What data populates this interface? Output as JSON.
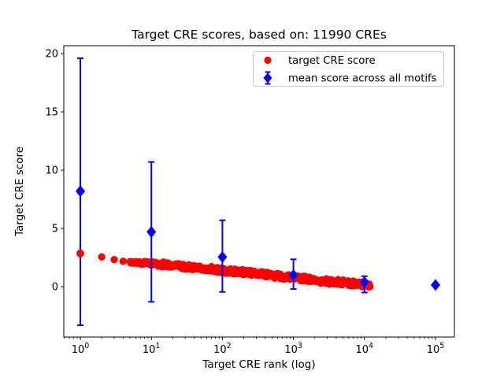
{
  "figure": {
    "background": "#ffffff",
    "plot_bg": "#ffffff",
    "spine_color": "#000000"
  },
  "chart_data": {
    "type": "scatter",
    "title": "Target CRE scores, based on: 11990 CREs",
    "xlabel": "Target CRE rank (log)",
    "ylabel": "Target CRE score",
    "x_scale": "log",
    "x_tick_base": "10",
    "x_tick_exponents": [
      0,
      1,
      2,
      3,
      4,
      5
    ],
    "y_ticks": [
      0,
      5,
      10,
      15,
      20
    ],
    "xlim_log10": [
      -0.233,
      5.266
    ],
    "ylim": [
      -4.32,
      20.68
    ],
    "grid": false,
    "legend_position": "upper center-right",
    "legend_frame_color": "#c8c8c8",
    "n_cres": 11990,
    "series": [
      {
        "name": "target CRE score",
        "color": "#ff0000",
        "marker": "circle",
        "rank_range": [
          1,
          11990
        ],
        "curve_log10x_y": [
          [
            0.0,
            2.85
          ],
          [
            0.301,
            2.55
          ],
          [
            0.477,
            2.32
          ],
          [
            0.602,
            2.18
          ],
          [
            0.699,
            2.1
          ],
          [
            1.0,
            2.0
          ],
          [
            1.5,
            1.7
          ],
          [
            2.0,
            1.4
          ],
          [
            2.5,
            1.1
          ],
          [
            3.0,
            0.75
          ],
          [
            3.5,
            0.45
          ],
          [
            4.0,
            0.2
          ],
          [
            4.079,
            0.15
          ]
        ],
        "band_halfwidth_score": 0.55
      },
      {
        "name": "mean score across all motifs",
        "color": "#0000ff",
        "marker": "diamond",
        "points": [
          {
            "x": 1,
            "y": 8.2,
            "ylo": -3.3,
            "yhi": 19.6
          },
          {
            "x": 10,
            "y": 4.7,
            "ylo": -1.3,
            "yhi": 10.7
          },
          {
            "x": 100,
            "y": 2.55,
            "ylo": -0.45,
            "yhi": 5.7
          },
          {
            "x": 1000,
            "y": 1.0,
            "ylo": -0.2,
            "yhi": 2.35
          },
          {
            "x": 10000,
            "y": 0.4,
            "ylo": -0.5,
            "yhi": 0.9
          },
          {
            "x": 100000,
            "y": 0.15,
            "ylo": 0.05,
            "yhi": 0.25
          }
        ]
      }
    ]
  }
}
